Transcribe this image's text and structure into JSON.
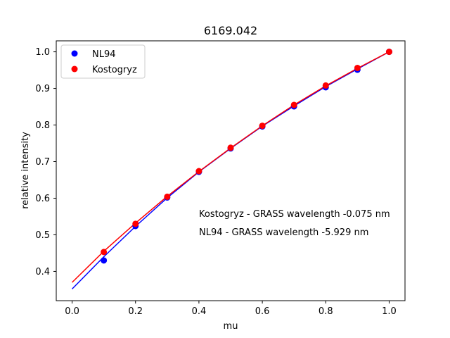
{
  "chart_data": {
    "type": "scatter",
    "title": "6169.042",
    "xlabel": "mu",
    "ylabel": "relative intensity",
    "xlim": [
      -0.05,
      1.05
    ],
    "ylim": [
      0.32,
      1.03
    ],
    "xticks": [
      "0.0",
      "0.2",
      "0.4",
      "0.6",
      "0.8",
      "1.0"
    ],
    "yticks": [
      "0.4",
      "0.5",
      "0.6",
      "0.7",
      "0.8",
      "0.9",
      "1.0"
    ],
    "grid": false,
    "legend_position": "top-left",
    "series": [
      {
        "name": "NL94",
        "color": "#0000ff",
        "points": {
          "x": [
            0.1,
            0.2,
            0.3,
            0.4,
            0.5,
            0.6,
            0.7,
            0.8,
            0.9,
            1.0
          ],
          "y": [
            0.43,
            0.524,
            0.602,
            0.672,
            0.736,
            0.796,
            0.851,
            0.903,
            0.951,
            1.0
          ]
        },
        "fit": {
          "x": [
            0.0,
            0.1,
            0.2,
            0.3,
            0.4,
            0.5,
            0.6,
            0.7,
            0.8,
            0.9,
            1.0
          ],
          "y": [
            0.352,
            0.44,
            0.523,
            0.601,
            0.672,
            0.736,
            0.797,
            0.852,
            0.905,
            0.953,
            1.0
          ]
        }
      },
      {
        "name": "Kostogryz",
        "color": "#ff0000",
        "points": {
          "x": [
            0.1,
            0.2,
            0.3,
            0.4,
            0.5,
            0.6,
            0.7,
            0.8,
            0.9,
            1.0
          ],
          "y": [
            0.453,
            0.53,
            0.604,
            0.674,
            0.738,
            0.798,
            0.855,
            0.908,
            0.956,
            1.0
          ]
        },
        "fit": {
          "x": [
            0.0,
            0.1,
            0.2,
            0.3,
            0.4,
            0.5,
            0.6,
            0.7,
            0.8,
            0.9,
            1.0
          ],
          "y": [
            0.37,
            0.455,
            0.532,
            0.605,
            0.673,
            0.737,
            0.798,
            0.855,
            0.907,
            0.955,
            1.0
          ]
        }
      }
    ],
    "annotations": [
      "Kostogryz - GRASS wavelength -0.075 nm",
      "NL94 - GRASS wavelength -5.929 nm"
    ]
  }
}
